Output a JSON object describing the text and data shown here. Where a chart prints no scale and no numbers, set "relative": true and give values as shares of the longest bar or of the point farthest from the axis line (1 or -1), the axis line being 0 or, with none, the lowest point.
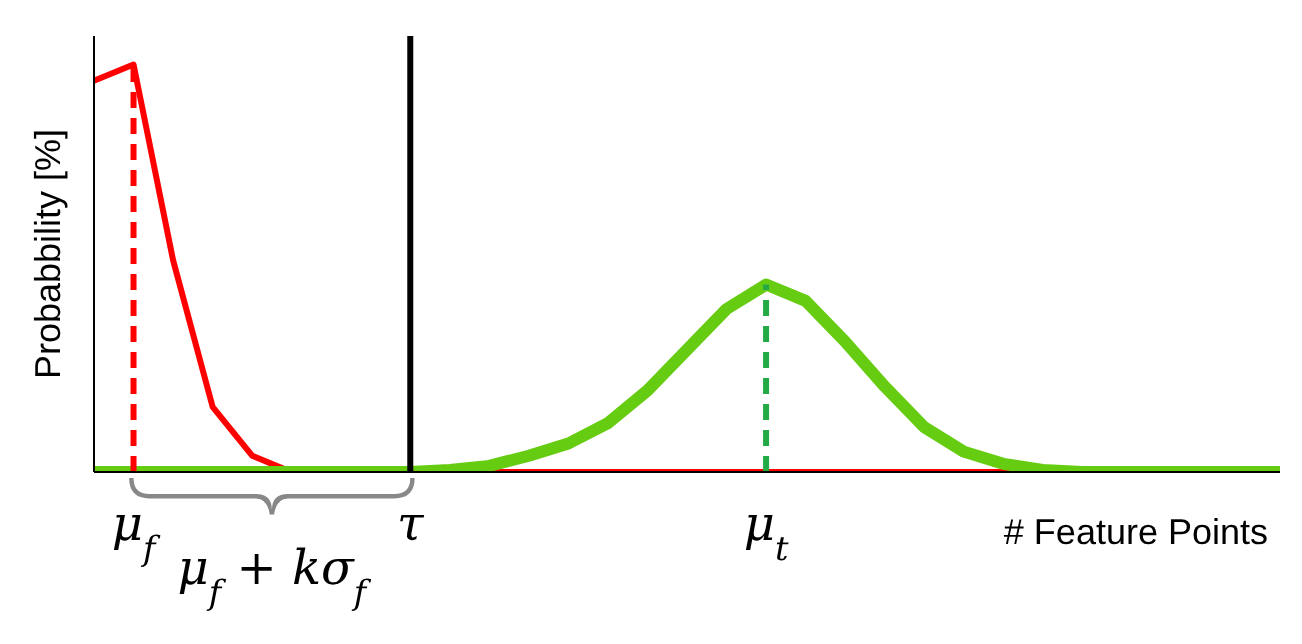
{
  "chart_data": {
    "type": "line",
    "relative": true,
    "xlabel": "# Feature Points",
    "ylabel": "Probabbility [%]",
    "categories": [
      null,
      "μ$_{f}$",
      null,
      null,
      null,
      null,
      null,
      null,
      "τ",
      null,
      null,
      null,
      null,
      null,
      null,
      null,
      null,
      "μ$_{t}$",
      null,
      null,
      null,
      null,
      null,
      null,
      null,
      null,
      null,
      null,
      null,
      null,
      null
    ],
    "tick_labels": "x",
    "marker": "none",
    "series": [
      {
        "color": "#ff0000",
        "values": [
          0.96,
          1,
          0.52,
          0.16,
          0.04,
          0,
          0,
          0,
          0,
          0,
          0,
          0,
          0,
          0,
          0,
          0,
          0,
          0,
          0,
          0,
          0,
          0,
          0,
          0,
          0,
          null,
          null,
          null,
          null,
          null,
          null
        ]
      },
      {
        "color": "#66cc11",
        "values": [
          0,
          0,
          0,
          0,
          0,
          0,
          0,
          0,
          0,
          0.005,
          0.015,
          0.04,
          0.07,
          0.12,
          0.2,
          0.3,
          0.4,
          0.46,
          0.42,
          0.32,
          0.21,
          0.11,
          0.05,
          0.02,
          0.005,
          0,
          0,
          0,
          0,
          0,
          0
        ]
      }
    ],
    "ref_lines": [
      {
        "axis": "x",
        "value": "μ$_{f}$",
        "color": "#ff0000",
        "line_style": "dashed"
      },
      {
        "axis": "x",
        "value": "τ",
        "color": "#000000",
        "line_style": "solid"
      },
      {
        "axis": "x",
        "value": "μ$_{t}$",
        "color": "#22aa44",
        "line_style": "dashed"
      }
    ],
    "annotations": [
      "μ$_{f}$ + kσ$_{f}$"
    ]
  }
}
